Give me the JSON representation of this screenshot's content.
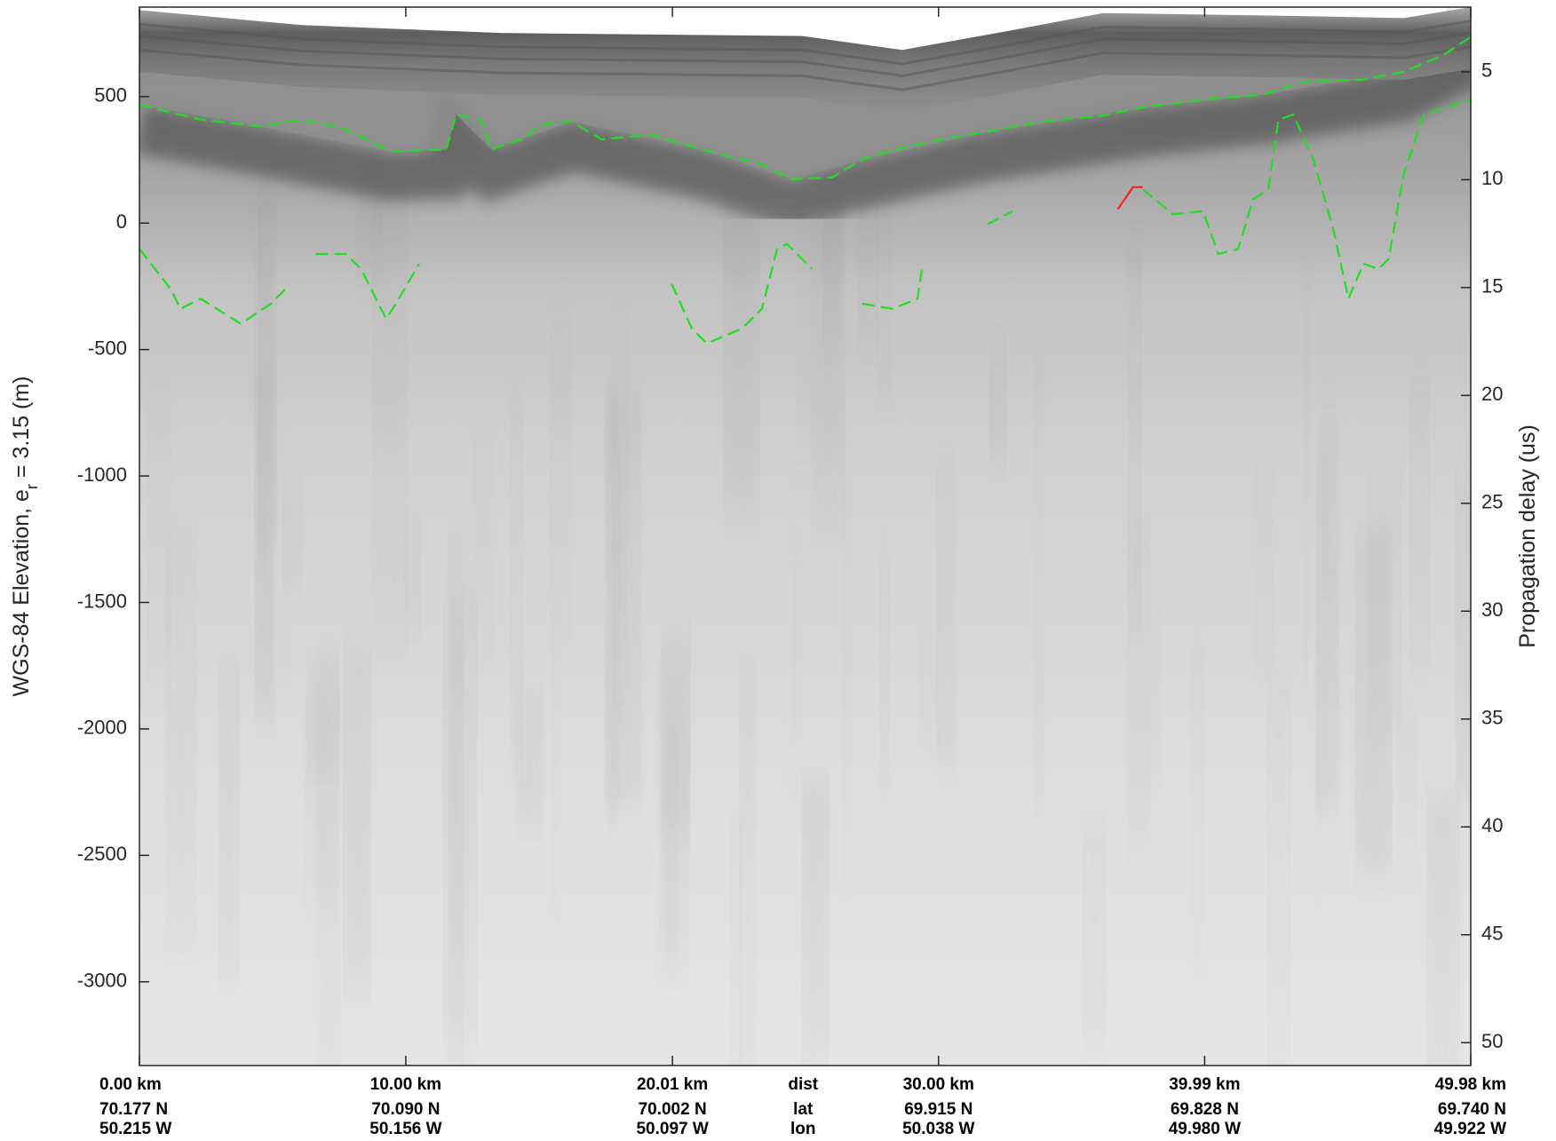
{
  "chart_data": {
    "type": "radargram",
    "ylabel": [
      "WGS-84 Elevation, e",
      "r",
      " = 3.15 (m)"
    ],
    "y2label": "Propagation delay (us)",
    "xlim": [
      0,
      49.98
    ],
    "ylim": [
      -3331,
      854
    ],
    "y2lim": [
      2.0,
      51.06
    ],
    "xticks": [
      {
        "value": 0,
        "label": "0.00 km"
      },
      {
        "value": 10,
        "label": "10.00 km"
      },
      {
        "value": 20.01,
        "label": "20.01 km"
      },
      {
        "value": 30,
        "label": "30.00 km"
      },
      {
        "value": 39.99,
        "label": "39.99 km"
      },
      {
        "value": 49.98,
        "label": "49.98 km"
      }
    ],
    "lat_labels": [
      "70.177 N",
      "70.090 N",
      "70.002 N",
      "69.915 N",
      "69.828 N",
      "69.740 N"
    ],
    "lon_labels": [
      "50.215 W",
      "50.156 W",
      "50.097 W",
      "50.038 W",
      "49.980 W",
      "49.922 W"
    ],
    "row_labels": [
      "dist",
      "lat",
      "lon"
    ],
    "yticks": [
      500,
      0,
      -500,
      -1000,
      -1500,
      -2000,
      -2500,
      -3000
    ],
    "y2ticks": [
      5,
      10,
      15,
      20,
      25,
      30,
      35,
      40,
      45,
      50
    ],
    "series": [
      {
        "color": "#22dd22",
        "style": "dashed",
        "x": [
          0,
          2.3,
          4.55,
          6.06,
          7.56,
          9.45,
          11.52,
          11.89,
          12.83,
          13.21,
          14.34,
          15.09,
          16.22,
          17.35,
          19.23,
          21.11,
          23.37,
          24.5,
          26.01,
          27.14,
          28.64,
          30.15,
          31.65,
          33.91,
          36.17,
          37.67,
          39.93,
          42.19,
          43.7,
          45.95,
          47.46,
          48.97,
          49.98
        ],
        "values": [
          468,
          409,
          382,
          409,
          378,
          283,
          291,
          429,
          409,
          291,
          331,
          390,
          402,
          331,
          350,
          291,
          232,
          173,
          181,
          252,
          299,
          331,
          358,
          402,
          425,
          457,
          488,
          508,
          559,
          567,
          598,
          665,
          736
        ]
      },
      {
        "color": "#22dd22",
        "style": "dashed",
        "x": [
          0,
          1.17,
          1.54,
          2.3,
          3.8,
          4.93,
          5.49,
          null,
          6.62,
          7.75,
          8.32,
          9.26,
          9.63,
          10.5,
          null,
          19.98,
          20.74,
          21.3,
          22.62,
          23.37,
          23.94,
          24.31,
          25.25,
          null,
          27.14,
          28.27,
          29.21,
          29.4,
          null,
          31.84,
          32.78,
          null,
          37.67,
          38.8,
          39.93,
          40.5,
          41.25,
          41.81,
          42.38,
          42.76,
          43.32,
          44.07,
          44.82,
          45.39,
          45.95,
          46.52,
          46.9,
          47.46,
          48.21,
          49.98
        ],
        "values": [
          -102,
          -260,
          -339,
          -299,
          -398,
          -319,
          -260,
          null,
          -122,
          -122,
          -181,
          -378,
          -319,
          -161,
          null,
          -240,
          -417,
          -476,
          -417,
          -339,
          -102,
          -83,
          -181,
          null,
          -319,
          -339,
          -299,
          -161,
          null,
          -4,
          47,
          null,
          134,
          35,
          47,
          -122,
          -102,
          94,
          134,
          409,
          429,
          252,
          -24,
          -299,
          -161,
          -181,
          -142,
          193,
          429,
          488
        ]
      },
      {
        "color": "#ff2020",
        "style": "solid",
        "x": [
          36.73,
          37.3,
          37.67
        ],
        "values": [
          55,
          142,
          142
        ]
      }
    ]
  }
}
